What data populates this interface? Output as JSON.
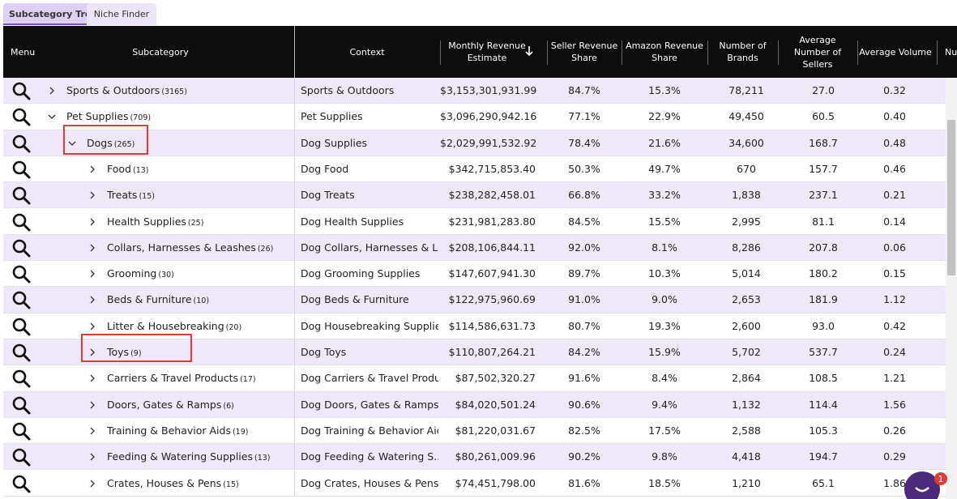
{
  "tabs": [
    "Subcategory Tree",
    "Niche Finder"
  ],
  "table": {
    "headers": [
      "Menu",
      "Subcategory",
      "Context",
      "Monthly Revenue Estimate",
      "Seller Revenue Share",
      "Amazon Revenue Share",
      "Number of Brands",
      "Average Number of Sellers",
      "Average Volume",
      "Nu"
    ],
    "rows": [
      {
        "name": "Sports & Outdoors",
        "count": "(3165)",
        "context": "Sports & Outdoors",
        "revenue": "$3,153,301,931.99",
        "seller_share": "84.7%",
        "amazon_share": "15.3%",
        "brands": "78,211",
        "sellers": "27.0",
        "volume": "0.32"
      },
      {
        "name": "Pet Supplies",
        "count": "(709)",
        "context": "Pet Supplies",
        "revenue": "$3,096,290,942.16",
        "seller_share": "77.1%",
        "amazon_share": "22.9%",
        "brands": "49,450",
        "sellers": "60.5",
        "volume": "0.40"
      },
      {
        "name": "Dogs",
        "count": "(265)",
        "context": "Dog Supplies",
        "revenue": "$2,029,991,532.92",
        "seller_share": "78.4%",
        "amazon_share": "21.6%",
        "brands": "34,600",
        "sellers": "168.7",
        "volume": "0.48"
      },
      {
        "name": "Food",
        "count": "(13)",
        "context": "Dog Food",
        "revenue": "$342,715,853.40",
        "seller_share": "50.3%",
        "amazon_share": "49.7%",
        "brands": "670",
        "sellers": "157.7",
        "volume": "0.46"
      },
      {
        "name": "Treats",
        "count": "(15)",
        "context": "Dog Treats",
        "revenue": "$238,282,458.01",
        "seller_share": "66.8%",
        "amazon_share": "33.2%",
        "brands": "1,838",
        "sellers": "237.1",
        "volume": "0.21"
      },
      {
        "name": "Health Supplies",
        "count": "(25)",
        "context": "Dog Health Supplies",
        "revenue": "$231,981,283.80",
        "seller_share": "84.5%",
        "amazon_share": "15.5%",
        "brands": "2,995",
        "sellers": "81.1",
        "volume": "0.14"
      },
      {
        "name": "Collars, Harnesses & Leashes",
        "count": "(26)",
        "context": "Dog Collars, Harnesses & L...",
        "revenue": "$208,106,844.11",
        "seller_share": "92.0%",
        "amazon_share": "8.1%",
        "brands": "8,286",
        "sellers": "207.8",
        "volume": "0.06"
      },
      {
        "name": "Grooming",
        "count": "(30)",
        "context": "Dog Grooming Supplies",
        "revenue": "$147,607,941.30",
        "seller_share": "89.7%",
        "amazon_share": "10.3%",
        "brands": "5,014",
        "sellers": "180.2",
        "volume": "0.15"
      },
      {
        "name": "Beds & Furniture",
        "count": "(10)",
        "context": "Dog Beds & Furniture",
        "revenue": "$122,975,960.69",
        "seller_share": "91.0%",
        "amazon_share": "9.0%",
        "brands": "2,653",
        "sellers": "181.9",
        "volume": "1.12"
      },
      {
        "name": "Litter & Housebreaking",
        "count": "(20)",
        "context": "Dog Housebreaking Supplies",
        "revenue": "$114,586,631.73",
        "seller_share": "80.7%",
        "amazon_share": "19.3%",
        "brands": "2,600",
        "sellers": "93.0",
        "volume": "0.42"
      },
      {
        "name": "Toys",
        "count": "(9)",
        "context": "Dog Toys",
        "revenue": "$110,807,264.21",
        "seller_share": "84.2%",
        "amazon_share": "15.9%",
        "brands": "5,702",
        "sellers": "537.7",
        "volume": "0.24"
      },
      {
        "name": "Carriers & Travel Products",
        "count": "(17)",
        "context": "Dog Carriers & Travel Produ...",
        "revenue": "$87,502,320.27",
        "seller_share": "91.6%",
        "amazon_share": "8.4%",
        "brands": "2,864",
        "sellers": "108.5",
        "volume": "1.21"
      },
      {
        "name": "Doors, Gates & Ramps",
        "count": "(6)",
        "context": "Dog Doors, Gates & Ramps",
        "revenue": "$84,020,501.24",
        "seller_share": "90.6%",
        "amazon_share": "9.4%",
        "brands": "1,132",
        "sellers": "114.4",
        "volume": "1.56"
      },
      {
        "name": "Training & Behavior Aids",
        "count": "(19)",
        "context": "Dog Training & Behavior Aids",
        "revenue": "$81,220,031.67",
        "seller_share": "82.5%",
        "amazon_share": "17.5%",
        "brands": "2,588",
        "sellers": "105.3",
        "volume": "0.26"
      },
      {
        "name": "Feeding & Watering Supplies",
        "count": "(13)",
        "context": "Dog Feeding & Watering S...",
        "revenue": "$80,261,009.96",
        "seller_share": "90.2%",
        "amazon_share": "9.8%",
        "brands": "4,418",
        "sellers": "194.7",
        "volume": "0.29"
      },
      {
        "name": "Crates, Houses & Pens",
        "count": "(15)",
        "context": "Dog Crates, Houses & Pens",
        "revenue": "$74,451,798.00",
        "seller_share": "81.6%",
        "amazon_share": "18.5%",
        "brands": "1,210",
        "sellers": "65.1",
        "volume": "1.86"
      }
    ]
  },
  "chat_badge": "1"
}
